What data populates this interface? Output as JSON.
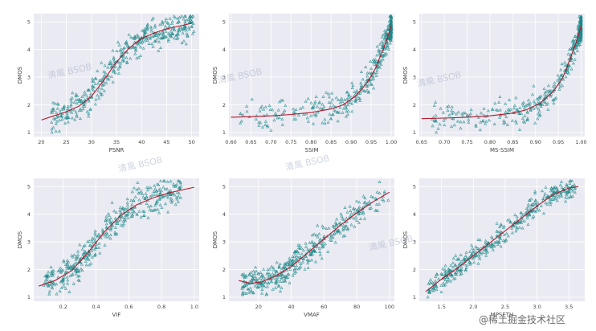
{
  "watermark": "清風 BSOB",
  "credit": "@稀土掘金技术社区",
  "chart_data": [
    {
      "type": "scatter",
      "xlabel": "PSNR",
      "ylabel": "DMOS",
      "xlim": [
        18.5,
        51.5
      ],
      "ylim": [
        0.85,
        5.3
      ],
      "xticks": [
        20,
        25,
        30,
        35,
        40,
        45,
        50
      ],
      "xtick_labels": [
        "20",
        "25",
        "30",
        "35",
        "40",
        "45",
        "50"
      ],
      "yticks": [
        1,
        2,
        3,
        4,
        5
      ],
      "ytick_labels": [
        "1",
        "2",
        "3",
        "4",
        "5"
      ],
      "fit": {
        "x": [
          20,
          22.5,
          25,
          27.5,
          30,
          32.5,
          35,
          37.5,
          40,
          42.5,
          45,
          47.5,
          50
        ],
        "y": [
          1.45,
          1.6,
          1.75,
          1.95,
          2.3,
          2.9,
          3.55,
          4.05,
          4.4,
          4.6,
          4.75,
          4.85,
          4.95
        ]
      },
      "points": {
        "count": 420,
        "spread": 0.55,
        "xrange": [
          22,
          50.5
        ]
      }
    },
    {
      "type": "scatter",
      "xlabel": "SSIM",
      "ylabel": "DMOS",
      "xlim": [
        0.595,
        1.008
      ],
      "ylim": [
        0.85,
        5.3
      ],
      "xticks": [
        0.6,
        0.65,
        0.7,
        0.75,
        0.8,
        0.85,
        0.9,
        0.95,
        1.0
      ],
      "xtick_labels": [
        "0.60",
        "0.65",
        "0.70",
        "0.75",
        "0.80",
        "0.85",
        "0.90",
        "0.95",
        "1.00"
      ],
      "yticks": [
        1,
        2,
        3,
        4,
        5
      ],
      "ytick_labels": [
        "1",
        "2",
        "3",
        "4",
        "5"
      ],
      "fit": {
        "x": [
          0.6,
          0.65,
          0.7,
          0.75,
          0.8,
          0.85,
          0.88,
          0.91,
          0.94,
          0.96,
          0.97,
          0.98,
          0.99,
          1.0
        ],
        "y": [
          1.55,
          1.57,
          1.6,
          1.65,
          1.72,
          1.85,
          2.0,
          2.3,
          2.8,
          3.3,
          3.65,
          4.0,
          4.4,
          4.85
        ]
      },
      "points": {
        "count": 420,
        "spread": 0.5,
        "xrange": [
          0.62,
          1.0
        ],
        "skew": 3.2
      }
    },
    {
      "type": "scatter",
      "xlabel": "MS-SSIM",
      "ylabel": "DMOS",
      "xlim": [
        0.645,
        1.008
      ],
      "ylim": [
        0.85,
        5.3
      ],
      "xticks": [
        0.65,
        0.7,
        0.75,
        0.8,
        0.85,
        0.9,
        0.95,
        1.0
      ],
      "xtick_labels": [
        "0.65",
        "0.70",
        "0.75",
        "0.80",
        "0.85",
        "0.90",
        "0.95",
        "1.00"
      ],
      "yticks": [
        1,
        2,
        3,
        4,
        5
      ],
      "ytick_labels": [
        "1",
        "2",
        "3",
        "4",
        "5"
      ],
      "fit": {
        "x": [
          0.65,
          0.7,
          0.75,
          0.8,
          0.85,
          0.88,
          0.91,
          0.94,
          0.96,
          0.97,
          0.98,
          0.99,
          1.0
        ],
        "y": [
          1.5,
          1.52,
          1.55,
          1.6,
          1.7,
          1.82,
          2.05,
          2.5,
          3.0,
          3.4,
          3.85,
          4.3,
          4.85
        ]
      },
      "points": {
        "count": 420,
        "spread": 0.5,
        "xrange": [
          0.67,
          1.0
        ],
        "skew": 3.4
      }
    },
    {
      "type": "scatter",
      "xlabel": "VIF",
      "ylabel": "DMOS",
      "xlim": [
        0.02,
        1.03
      ],
      "ylim": [
        0.85,
        5.3
      ],
      "xticks": [
        0.2,
        0.4,
        0.6,
        0.8,
        1.0
      ],
      "xtick_labels": [
        "0.2",
        "0.4",
        "0.6",
        "0.8",
        "1.0"
      ],
      "yticks": [
        1,
        2,
        3,
        4,
        5
      ],
      "ytick_labels": [
        "1",
        "2",
        "3",
        "4",
        "5"
      ],
      "fit": {
        "x": [
          0.05,
          0.15,
          0.25,
          0.35,
          0.45,
          0.55,
          0.65,
          0.75,
          0.85,
          1.0
        ],
        "y": [
          1.4,
          1.6,
          1.95,
          2.6,
          3.35,
          3.95,
          4.35,
          4.6,
          4.78,
          4.98
        ]
      },
      "points": {
        "count": 420,
        "spread": 0.55,
        "xrange": [
          0.08,
          0.92
        ]
      }
    },
    {
      "type": "scatter",
      "xlabel": "VMAF",
      "ylabel": "DMOS",
      "xlim": [
        2,
        103
      ],
      "ylim": [
        0.85,
        5.3
      ],
      "xticks": [
        20,
        40,
        60,
        80,
        100
      ],
      "xtick_labels": [
        "20",
        "40",
        "60",
        "80",
        "100"
      ],
      "yticks": [
        1,
        2,
        3,
        4,
        5
      ],
      "ytick_labels": [
        "1",
        "2",
        "3",
        "4",
        "5"
      ],
      "fit": {
        "x": [
          8,
          15,
          22,
          30,
          40,
          50,
          60,
          70,
          80,
          90,
          100
        ],
        "y": [
          1.6,
          1.5,
          1.55,
          1.75,
          2.1,
          2.6,
          3.1,
          3.6,
          4.05,
          4.45,
          4.8
        ]
      },
      "points": {
        "count": 420,
        "spread": 0.5,
        "xrange": [
          10,
          100
        ],
        "skew": 0.7
      }
    },
    {
      "type": "scatter",
      "xlabel": "MPSETH",
      "ylabel": "DMOS",
      "xlim": [
        1.15,
        3.75
      ],
      "ylim": [
        0.85,
        5.3
      ],
      "xticks": [
        1.5,
        2.0,
        2.5,
        3.0,
        3.5
      ],
      "xtick_labels": [
        "1.5",
        "2.0",
        "2.5",
        "3.0",
        "3.5"
      ],
      "yticks": [
        1,
        2,
        3,
        4,
        5
      ],
      "ytick_labels": [
        "1",
        "2",
        "3",
        "4",
        "5"
      ],
      "fit": {
        "x": [
          1.25,
          1.5,
          1.75,
          2.0,
          2.25,
          2.5,
          2.75,
          3.0,
          3.25,
          3.5,
          3.65
        ],
        "y": [
          1.2,
          1.65,
          2.05,
          2.5,
          2.95,
          3.4,
          3.85,
          4.3,
          4.7,
          4.95,
          5.0
        ]
      },
      "points": {
        "count": 420,
        "spread": 0.4,
        "xrange": [
          1.28,
          3.62
        ]
      }
    }
  ]
}
